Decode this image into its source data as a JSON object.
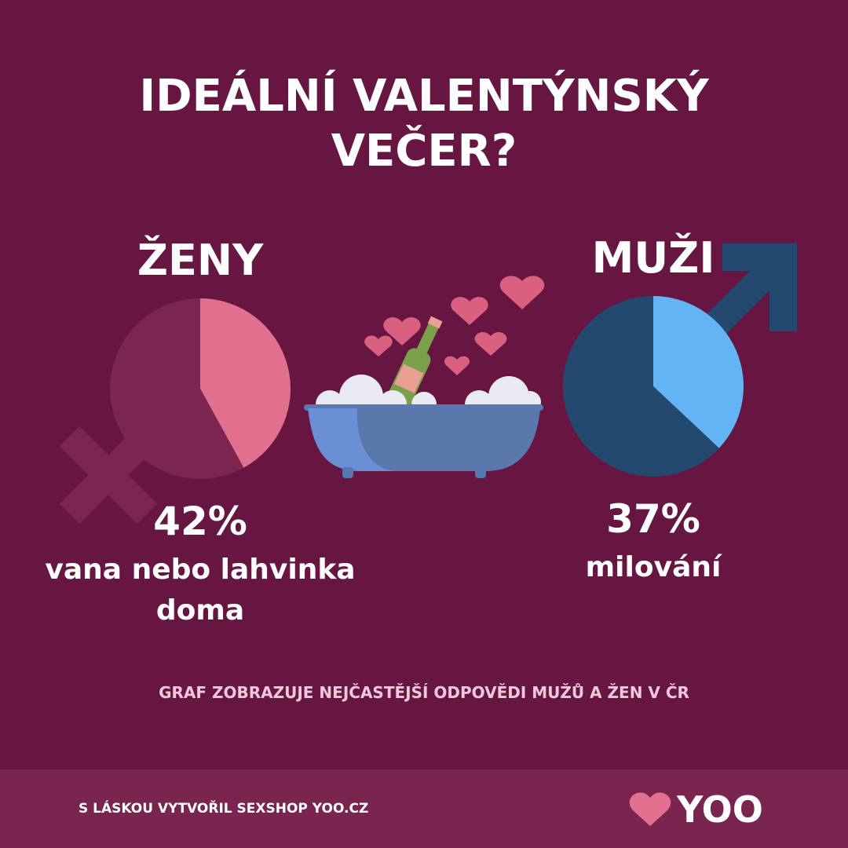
{
  "title": "IDEÁLNÍ VALENTÝNSKÝ VEČER?",
  "chart_data": [
    {
      "type": "pie",
      "title": "ŽENY",
      "categories": [
        "vana nebo lahvinka doma",
        null
      ],
      "values": [
        42,
        58
      ],
      "value_labels": [
        "42%",
        null
      ],
      "colors": [
        "#e0708e",
        "#7b2550"
      ]
    },
    {
      "type": "pie",
      "title": "MUŽI",
      "categories": [
        "milování",
        null
      ],
      "values": [
        37,
        63
      ],
      "value_labels": [
        "37%",
        null
      ],
      "colors": [
        "#62b4f5",
        "#234a6e"
      ]
    }
  ],
  "note": "GRAF ZOBRAZUJE NEJČASTĚJŠÍ ODPOVĚDI MUŽŮ A ŽEN V ČR",
  "footer": {
    "credit": "S LÁSKOU VYTVOŘIL SEXSHOP YOO.CZ",
    "logo": "YOO"
  }
}
